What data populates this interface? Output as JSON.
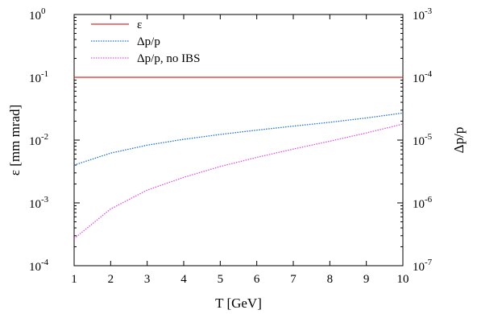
{
  "chart_data": {
    "type": "line",
    "title": "",
    "xlabel": "T [GeV]",
    "ylabel_left": "ε [mm mrad]",
    "ylabel_right": "Δp/p",
    "x_ticks": [
      "1",
      "2",
      "3",
      "4",
      "5",
      "6",
      "7",
      "8",
      "9",
      "10"
    ],
    "xlim": [
      1,
      10
    ],
    "y_left": {
      "scale": "log",
      "lim": [
        0.0001,
        1
      ],
      "ticks": [
        {
          "value": 1,
          "mantissa": "10",
          "exp": "0"
        },
        {
          "value": 0.1,
          "mantissa": "10",
          "exp": "-1"
        },
        {
          "value": 0.01,
          "mantissa": "10",
          "exp": "-2"
        },
        {
          "value": 0.001,
          "mantissa": "10",
          "exp": "-3"
        },
        {
          "value": 0.0001,
          "mantissa": "10",
          "exp": "-4"
        }
      ]
    },
    "y_right": {
      "scale": "log",
      "lim": [
        1e-07,
        0.001
      ],
      "ticks": [
        {
          "value": 0.001,
          "mantissa": "10",
          "exp": "-3"
        },
        {
          "value": 0.0001,
          "mantissa": "10",
          "exp": "-4"
        },
        {
          "value": 1e-05,
          "mantissa": "10",
          "exp": "-5"
        },
        {
          "value": 1e-06,
          "mantissa": "10",
          "exp": "-6"
        },
        {
          "value": 1e-07,
          "mantissa": "10",
          "exp": "-7"
        }
      ]
    },
    "grid": false,
    "legend_position": "top-left",
    "x": [
      1,
      2,
      3,
      4,
      5,
      6,
      7,
      8,
      9,
      10
    ],
    "series": [
      {
        "name": "ε",
        "axis": "left",
        "color": "#e8262a",
        "style": "solid",
        "values": [
          0.1,
          0.1,
          0.1,
          0.1,
          0.1,
          0.1,
          0.1,
          0.1,
          0.1,
          0.1
        ]
      },
      {
        "name": "Δp/p",
        "axis": "right",
        "color": "#1a6fd6",
        "style": "dotted",
        "values": [
          4e-06,
          6.2e-06,
          8.3e-06,
          1.03e-05,
          1.23e-05,
          1.44e-05,
          1.67e-05,
          1.92e-05,
          2.25e-05,
          2.7e-05
        ]
      },
      {
        "name": "Δp/p, no IBS",
        "axis": "right",
        "color": "#e050e0",
        "style": "dotted",
        "values": [
          2.7e-07,
          8e-07,
          1.6e-06,
          2.55e-06,
          3.8e-06,
          5.3e-06,
          7.2e-06,
          9.6e-06,
          1.3e-05,
          1.8e-05
        ]
      }
    ]
  }
}
